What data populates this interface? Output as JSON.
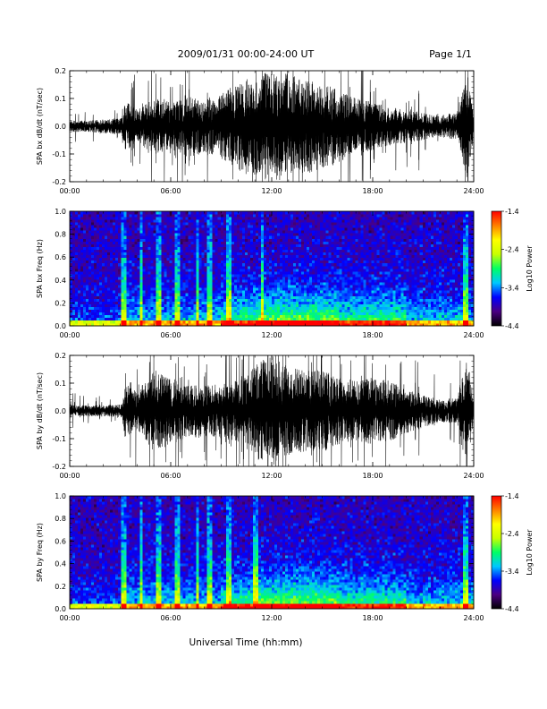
{
  "header": {
    "title": "2009/01/31  00:00-24:00 UT",
    "page": "Page 1/1"
  },
  "footer": {
    "xlabel": "Universal Time (hh:mm)"
  },
  "chart_data": [
    {
      "type": "line",
      "ylabel": "SPA bx dB/dt (nT/sec)",
      "xlabel": "",
      "x_ticks": [
        "00:00",
        "06:00",
        "12:00",
        "18:00",
        "24:00"
      ],
      "xlim_hours": [
        0,
        24
      ],
      "ylim": [
        -0.2,
        0.2
      ],
      "y_ticks": [
        "-0.2",
        "-0.1",
        "0.0",
        "0.1",
        "0.2"
      ],
      "y_tick_values": [
        -0.2,
        -0.1,
        0.0,
        0.1,
        0.2
      ],
      "envelope": [
        {
          "x": 0,
          "amp": 0.02
        },
        {
          "x": 1,
          "amp": 0.02
        },
        {
          "x": 2,
          "amp": 0.025
        },
        {
          "x": 3.1,
          "amp": 0.03
        },
        {
          "x": 3.3,
          "amp": 0.09
        },
        {
          "x": 4,
          "amp": 0.06
        },
        {
          "x": 5,
          "amp": 0.1
        },
        {
          "x": 6,
          "amp": 0.09
        },
        {
          "x": 7,
          "amp": 0.11
        },
        {
          "x": 8,
          "amp": 0.1
        },
        {
          "x": 9,
          "amp": 0.12
        },
        {
          "x": 10,
          "amp": 0.16
        },
        {
          "x": 11,
          "amp": 0.19
        },
        {
          "x": 12,
          "amp": 0.2
        },
        {
          "x": 13,
          "amp": 0.19
        },
        {
          "x": 14,
          "amp": 0.17
        },
        {
          "x": 15,
          "amp": 0.16
        },
        {
          "x": 16,
          "amp": 0.13
        },
        {
          "x": 17,
          "amp": 0.1
        },
        {
          "x": 18,
          "amp": 0.09
        },
        {
          "x": 19,
          "amp": 0.07
        },
        {
          "x": 20,
          "amp": 0.06
        },
        {
          "x": 21,
          "amp": 0.05
        },
        {
          "x": 22,
          "amp": 0.04
        },
        {
          "x": 23,
          "amp": 0.05
        },
        {
          "x": 23.6,
          "amp": 0.2
        },
        {
          "x": 24,
          "amp": 0.04
        }
      ]
    },
    {
      "type": "heatmap",
      "ylabel": "SPA bx Freq (Hz)",
      "x_ticks": [
        "00:00",
        "06:00",
        "12:00",
        "18:00",
        "24:00"
      ],
      "xlim_hours": [
        0,
        24
      ],
      "ylim": [
        0,
        1.0
      ],
      "y_ticks": [
        "0.0",
        "0.2",
        "0.4",
        "0.6",
        "0.8",
        "1.0"
      ],
      "y_tick_values": [
        0.0,
        0.2,
        0.4,
        0.6,
        0.8,
        1.0
      ],
      "colorbar": {
        "label": "Log10 Power",
        "ticks": [
          "-1.4",
          "-2.4",
          "-3.4",
          "-4.4"
        ],
        "tick_values": [
          -1.4,
          -2.4,
          -3.4,
          -4.4
        ],
        "range": [
          -4.4,
          -1.4
        ],
        "colors": [
          "#000000",
          "#4b0082",
          "#0000ff",
          "#00c8ff",
          "#00ff64",
          "#c8ff00",
          "#ffff00",
          "#ff8000",
          "#ff0000"
        ]
      },
      "bright_columns_hours": [
        3.2,
        4.2,
        5.3,
        6.4,
        7.6,
        8.3,
        9.4,
        11.4,
        23.5
      ]
    },
    {
      "type": "line",
      "ylabel": "SPA by dB/dt (nT/sec)",
      "xlabel": "",
      "x_ticks": [
        "00:00",
        "06:00",
        "12:00",
        "18:00",
        "24:00"
      ],
      "xlim_hours": [
        0,
        24
      ],
      "ylim": [
        -0.2,
        0.2
      ],
      "y_ticks": [
        "-0.2",
        "-0.1",
        "0.0",
        "0.1",
        "0.2"
      ],
      "y_tick_values": [
        -0.2,
        -0.1,
        0.0,
        0.1,
        0.2
      ],
      "envelope": [
        {
          "x": 0,
          "amp": 0.02
        },
        {
          "x": 1,
          "amp": 0.02
        },
        {
          "x": 2,
          "amp": 0.02
        },
        {
          "x": 3.1,
          "amp": 0.025
        },
        {
          "x": 3.3,
          "amp": 0.1
        },
        {
          "x": 4,
          "amp": 0.07
        },
        {
          "x": 5,
          "amp": 0.15
        },
        {
          "x": 6,
          "amp": 0.12
        },
        {
          "x": 7,
          "amp": 0.1
        },
        {
          "x": 8,
          "amp": 0.09
        },
        {
          "x": 9,
          "amp": 0.1
        },
        {
          "x": 10,
          "amp": 0.11
        },
        {
          "x": 11,
          "amp": 0.17
        },
        {
          "x": 12,
          "amp": 0.2
        },
        {
          "x": 13,
          "amp": 0.16
        },
        {
          "x": 14,
          "amp": 0.15
        },
        {
          "x": 15,
          "amp": 0.15
        },
        {
          "x": 16,
          "amp": 0.12
        },
        {
          "x": 17,
          "amp": 0.11
        },
        {
          "x": 18,
          "amp": 0.12
        },
        {
          "x": 19,
          "amp": 0.11
        },
        {
          "x": 20,
          "amp": 0.08
        },
        {
          "x": 21,
          "amp": 0.06
        },
        {
          "x": 22,
          "amp": 0.04
        },
        {
          "x": 23,
          "amp": 0.05
        },
        {
          "x": 23.6,
          "amp": 0.2
        },
        {
          "x": 24,
          "amp": 0.04
        }
      ]
    },
    {
      "type": "heatmap",
      "ylabel": "SPA by Freq (Hz)",
      "x_ticks": [
        "00:00",
        "06:00",
        "12:00",
        "18:00",
        "24:00"
      ],
      "xlim_hours": [
        0,
        24
      ],
      "ylim": [
        0,
        1.0
      ],
      "y_ticks": [
        "0.0",
        "0.2",
        "0.4",
        "0.6",
        "0.8",
        "1.0"
      ],
      "y_tick_values": [
        0.0,
        0.2,
        0.4,
        0.6,
        0.8,
        1.0
      ],
      "colorbar": {
        "label": "Log10 Power",
        "ticks": [
          "-1.4",
          "-2.4",
          "-3.4",
          "-4.4"
        ],
        "tick_values": [
          -1.4,
          -2.4,
          -3.4,
          -4.4
        ],
        "range": [
          -4.4,
          -1.4
        ],
        "colors": [
          "#000000",
          "#4b0082",
          "#0000ff",
          "#00c8ff",
          "#00ff64",
          "#c8ff00",
          "#ffff00",
          "#ff8000",
          "#ff0000"
        ]
      },
      "bright_columns_hours": [
        3.2,
        4.2,
        5.3,
        6.4,
        7.6,
        8.3,
        9.4,
        11.0,
        23.5
      ]
    }
  ]
}
